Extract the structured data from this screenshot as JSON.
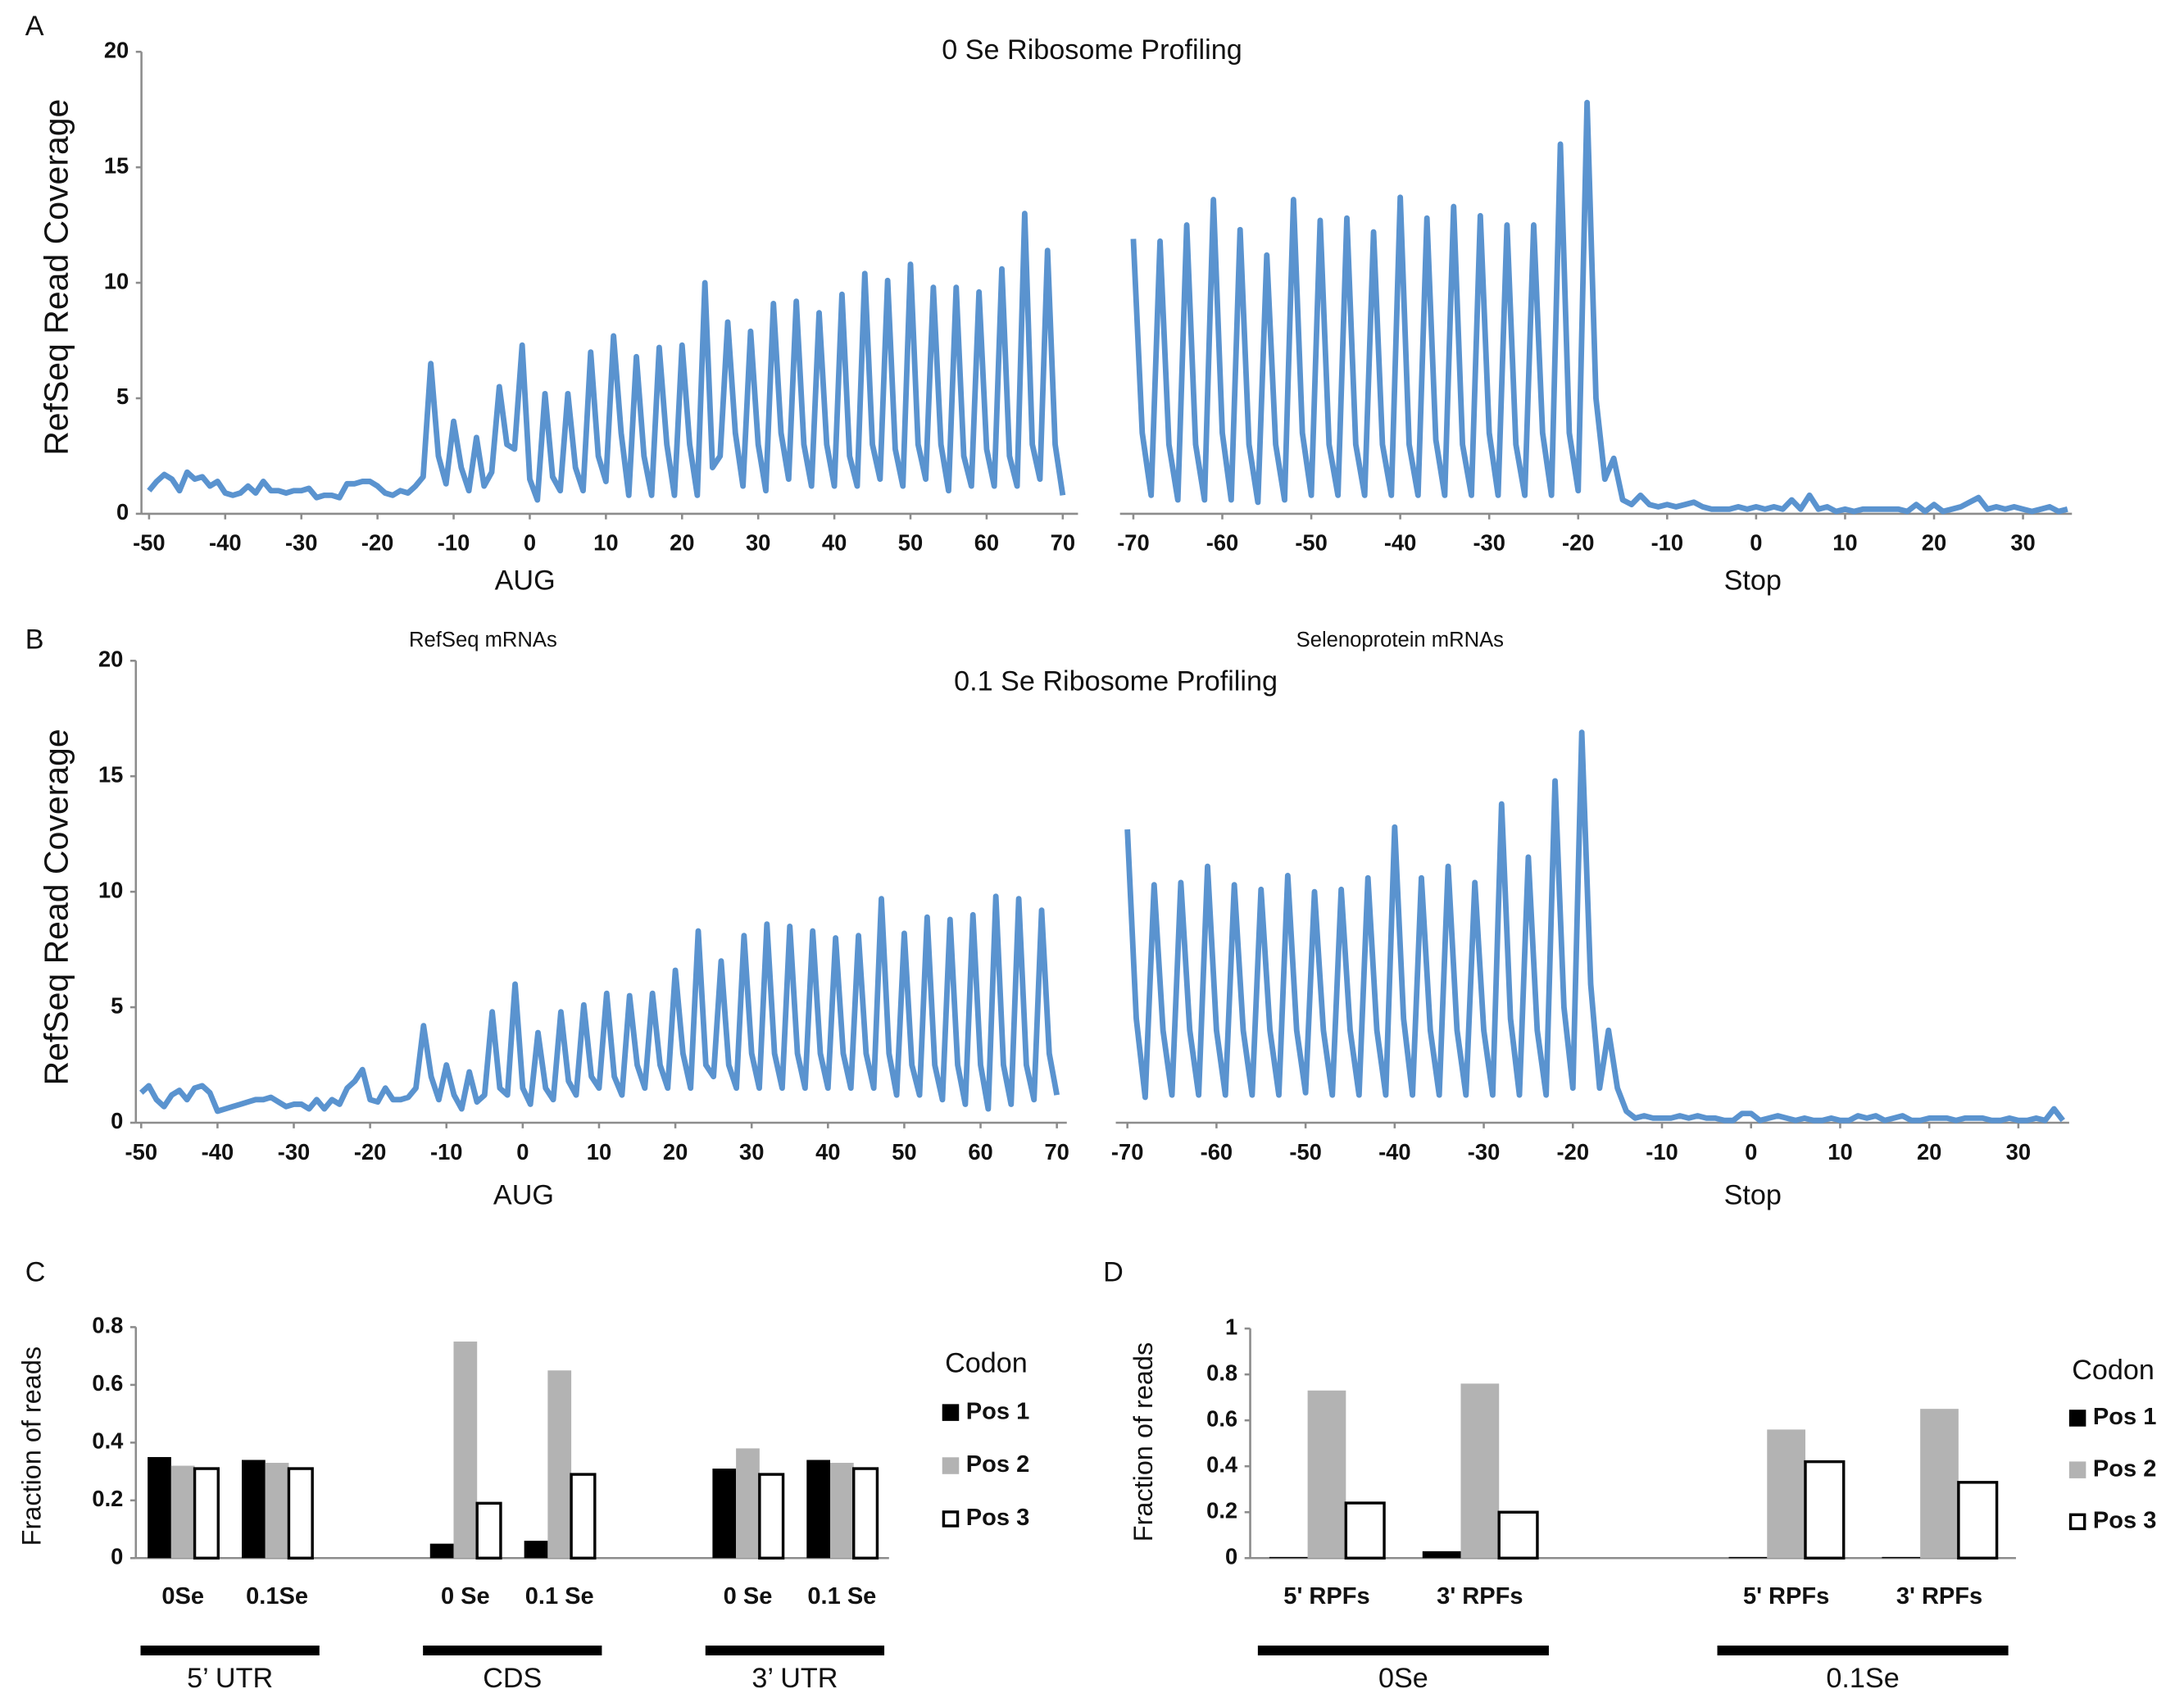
{
  "chart_data": [
    {
      "type": "line",
      "panel": "A",
      "title": "0 Se Ribosome Profiling",
      "ylabel": "RefSeq Read Coverage",
      "xlabel": "AUG",
      "color": "#5a93cf",
      "xlim": [
        -51,
        72
      ],
      "xticks": [
        -50,
        -40,
        -30,
        -20,
        -10,
        0,
        10,
        20,
        30,
        40,
        50,
        60,
        70
      ],
      "ylim": [
        0,
        20
      ],
      "yticks": [
        0,
        5,
        10,
        15,
        20
      ],
      "x": [
        -50,
        -49,
        -48,
        -47,
        -46,
        -45,
        -44,
        -43,
        -42,
        -41,
        -40,
        -39,
        -38,
        -37,
        -36,
        -35,
        -34,
        -33,
        -32,
        -31,
        -30,
        -29,
        -28,
        -27,
        -26,
        -25,
        -24,
        -23,
        -22,
        -21,
        -20,
        -19,
        -18,
        -17,
        -16,
        -15,
        -14,
        -13,
        -12,
        -11,
        -10,
        -9,
        -8,
        -7,
        -6,
        -5,
        -4,
        -3,
        -2,
        -1,
        0,
        1,
        2,
        3,
        4,
        5,
        6,
        7,
        8,
        9,
        10,
        11,
        12,
        13,
        14,
        15,
        16,
        17,
        18,
        19,
        20,
        21,
        22,
        23,
        24,
        25,
        26,
        27,
        28,
        29,
        30,
        31,
        32,
        33,
        34,
        35,
        36,
        37,
        38,
        39,
        40,
        41,
        42,
        43,
        44,
        45,
        46,
        47,
        48,
        49,
        50,
        51,
        52,
        53,
        54,
        55,
        56,
        57,
        58,
        59,
        60,
        61,
        62,
        63,
        64,
        65,
        66,
        67,
        68,
        69,
        70
      ],
      "values": [
        1.0,
        1.4,
        1.7,
        1.5,
        1.0,
        1.8,
        1.5,
        1.6,
        1.2,
        1.4,
        0.9,
        0.8,
        0.9,
        1.2,
        0.9,
        1.4,
        1.0,
        1.0,
        0.9,
        1.0,
        1.0,
        1.1,
        0.7,
        0.8,
        0.8,
        0.7,
        1.3,
        1.3,
        1.4,
        1.4,
        1.2,
        0.9,
        0.8,
        1.0,
        0.9,
        1.2,
        1.6,
        6.5,
        2.5,
        1.3,
        4.0,
        2.0,
        1.0,
        3.3,
        1.2,
        1.8,
        5.5,
        3.0,
        2.8,
        7.3,
        1.5,
        0.6,
        5.2,
        1.6,
        1.0,
        5.2,
        2.0,
        1.0,
        7.0,
        2.5,
        1.4,
        7.7,
        3.5,
        0.8,
        6.8,
        2.5,
        0.8,
        7.2,
        3.0,
        0.8,
        7.3,
        3.0,
        0.8,
        10.0,
        2.0,
        2.5,
        8.3,
        3.5,
        1.2,
        7.9,
        3.0,
        1.0,
        9.1,
        3.5,
        1.5,
        9.2,
        3.0,
        1.2,
        8.7,
        3.0,
        1.2,
        9.5,
        2.5,
        1.2,
        10.4,
        3.0,
        1.5,
        10.1,
        2.8,
        1.2,
        10.8,
        3.0,
        1.5,
        9.8,
        3.0,
        1.0,
        9.8,
        2.5,
        1.2,
        9.6,
        2.8,
        1.2,
        10.6,
        2.5,
        1.2,
        13.0,
        3.0,
        1.5,
        11.4,
        3.0,
        0.8
      ]
    },
    {
      "type": "line",
      "xlabel": "Stop",
      "color": "#5a93cf",
      "xlim": [
        -71.5,
        35.5
      ],
      "xticks": [
        -70,
        -60,
        -50,
        -40,
        -30,
        -20,
        -10,
        0,
        10,
        20,
        30
      ],
      "ylim": [
        0,
        20
      ],
      "x": [
        -70,
        -69,
        -68,
        -67,
        -66,
        -65,
        -64,
        -63,
        -62,
        -61,
        -60,
        -59,
        -58,
        -57,
        -56,
        -55,
        -54,
        -53,
        -52,
        -51,
        -50,
        -49,
        -48,
        -47,
        -46,
        -45,
        -44,
        -43,
        -42,
        -41,
        -40,
        -39,
        -38,
        -37,
        -36,
        -35,
        -34,
        -33,
        -32,
        -31,
        -30,
        -29,
        -28,
        -27,
        -26,
        -25,
        -24,
        -23,
        -22,
        -21,
        -20,
        -19,
        -18,
        -17,
        -16,
        -15,
        -14,
        -13,
        -12,
        -11,
        -10,
        -9,
        -8,
        -7,
        -6,
        -5,
        -4,
        -3,
        -2,
        -1,
        0,
        1,
        2,
        3,
        4,
        5,
        6,
        7,
        8,
        9,
        10,
        11,
        12,
        13,
        14,
        15,
        16,
        17,
        18,
        19,
        20,
        21,
        22,
        23,
        24,
        25,
        26,
        27,
        28,
        29,
        30,
        31,
        32,
        33,
        34,
        35
      ],
      "values": [
        11.9,
        3.5,
        0.8,
        11.8,
        3.0,
        0.6,
        12.5,
        3.0,
        0.6,
        13.6,
        3.5,
        0.6,
        12.3,
        3.0,
        0.5,
        11.2,
        3.0,
        0.6,
        13.6,
        3.5,
        0.8,
        12.7,
        3.0,
        0.8,
        12.8,
        3.0,
        0.8,
        12.2,
        3.0,
        0.8,
        13.7,
        3.0,
        0.8,
        12.8,
        3.2,
        0.8,
        13.3,
        3.0,
        0.8,
        12.9,
        3.5,
        0.8,
        12.5,
        3.0,
        0.8,
        12.5,
        3.5,
        0.8,
        16.0,
        3.5,
        1.0,
        17.8,
        5.0,
        1.5,
        2.4,
        0.6,
        0.4,
        0.8,
        0.4,
        0.3,
        0.4,
        0.3,
        0.4,
        0.5,
        0.3,
        0.2,
        0.2,
        0.2,
        0.3,
        0.2,
        0.3,
        0.2,
        0.3,
        0.2,
        0.6,
        0.2,
        0.8,
        0.2,
        0.3,
        0.1,
        0.2,
        0.1,
        0.2,
        0.2,
        0.2,
        0.2,
        0.2,
        0.1,
        0.4,
        0.1,
        0.4,
        0.1,
        0.2,
        0.3,
        0.5,
        0.7,
        0.2,
        0.3,
        0.2,
        0.3,
        0.2,
        0.1,
        0.2,
        0.3,
        0.1,
        0.2
      ]
    },
    {
      "type": "line",
      "panel": "B",
      "title": "0.1 Se Ribosome Profiling",
      "annotation": "RefSeq mRNAs",
      "ylabel": "RefSeq Read Coverage",
      "xlabel": "AUG",
      "color": "#5a93cf",
      "xlim": [
        -50.7,
        71.3
      ],
      "xticks": [
        -50,
        -40,
        -30,
        -20,
        -10,
        0,
        10,
        20,
        30,
        40,
        50,
        60,
        70
      ],
      "ylim": [
        0,
        20
      ],
      "yticks": [
        0,
        5,
        10,
        15,
        20
      ],
      "x": [
        -50,
        -49,
        -48,
        -47,
        -46,
        -45,
        -44,
        -43,
        -42,
        -41,
        -40,
        -39,
        -38,
        -37,
        -36,
        -35,
        -34,
        -33,
        -32,
        -31,
        -30,
        -29,
        -28,
        -27,
        -26,
        -25,
        -24,
        -23,
        -22,
        -21,
        -20,
        -19,
        -18,
        -17,
        -16,
        -15,
        -14,
        -13,
        -12,
        -11,
        -10,
        -9,
        -8,
        -7,
        -6,
        -5,
        -4,
        -3,
        -2,
        -1,
        0,
        1,
        2,
        3,
        4,
        5,
        6,
        7,
        8,
        9,
        10,
        11,
        12,
        13,
        14,
        15,
        16,
        17,
        18,
        19,
        20,
        21,
        22,
        23,
        24,
        25,
        26,
        27,
        28,
        29,
        30,
        31,
        32,
        33,
        34,
        35,
        36,
        37,
        38,
        39,
        40,
        41,
        42,
        43,
        44,
        45,
        46,
        47,
        48,
        49,
        50,
        51,
        52,
        53,
        54,
        55,
        56,
        57,
        58,
        59,
        60,
        61,
        62,
        63,
        64,
        65,
        66,
        67,
        68,
        69,
        70
      ],
      "values": [
        1.3,
        1.6,
        1.0,
        0.7,
        1.2,
        1.4,
        1.0,
        1.5,
        1.6,
        1.3,
        0.5,
        0.6,
        0.7,
        0.8,
        0.9,
        1.0,
        1.0,
        1.1,
        0.9,
        0.7,
        0.8,
        0.8,
        0.6,
        1.0,
        0.6,
        1.0,
        0.8,
        1.5,
        1.8,
        2.3,
        1.0,
        0.9,
        1.5,
        1.0,
        1.0,
        1.1,
        1.5,
        4.2,
        2.0,
        1.0,
        2.5,
        1.2,
        0.6,
        2.2,
        0.9,
        1.2,
        4.8,
        1.5,
        1.2,
        6.0,
        1.5,
        0.8,
        3.9,
        1.5,
        1.0,
        4.8,
        1.8,
        1.2,
        5.1,
        2.0,
        1.5,
        5.6,
        2.0,
        1.2,
        5.5,
        2.5,
        1.5,
        5.6,
        2.5,
        1.5,
        6.6,
        3.0,
        1.5,
        8.3,
        2.5,
        2.0,
        7.0,
        2.5,
        1.5,
        8.1,
        3.0,
        1.5,
        8.6,
        3.0,
        1.5,
        8.5,
        3.0,
        1.5,
        8.3,
        3.0,
        1.5,
        8.0,
        3.0,
        1.5,
        8.1,
        3.0,
        1.5,
        9.7,
        3.0,
        1.2,
        8.2,
        2.5,
        1.2,
        8.9,
        2.5,
        1.0,
        8.8,
        2.5,
        0.8,
        9.0,
        2.5,
        0.6,
        9.8,
        2.5,
        0.8,
        9.7,
        2.5,
        1.0,
        9.2,
        3.0,
        1.2
      ]
    },
    {
      "type": "line",
      "annotation": "Selenoprotein mRNAs",
      "xlabel": "Stop",
      "color": "#5a93cf",
      "xlim": [
        -71.3,
        35.7
      ],
      "xticks": [
        -70,
        -60,
        -50,
        -40,
        -30,
        -20,
        -10,
        0,
        10,
        20,
        30
      ],
      "ylim": [
        0,
        20
      ],
      "x": [
        -70,
        -69,
        -68,
        -67,
        -66,
        -65,
        -64,
        -63,
        -62,
        -61,
        -60,
        -59,
        -58,
        -57,
        -56,
        -55,
        -54,
        -53,
        -52,
        -51,
        -50,
        -49,
        -48,
        -47,
        -46,
        -45,
        -44,
        -43,
        -42,
        -41,
        -40,
        -39,
        -38,
        -37,
        -36,
        -35,
        -34,
        -33,
        -32,
        -31,
        -30,
        -29,
        -28,
        -27,
        -26,
        -25,
        -24,
        -23,
        -22,
        -21,
        -20,
        -19,
        -18,
        -17,
        -16,
        -15,
        -14,
        -13,
        -12,
        -11,
        -10,
        -9,
        -8,
        -7,
        -6,
        -5,
        -4,
        -3,
        -2,
        -1,
        0,
        1,
        2,
        3,
        4,
        5,
        6,
        7,
        8,
        9,
        10,
        11,
        12,
        13,
        14,
        15,
        16,
        17,
        18,
        19,
        20,
        21,
        22,
        23,
        24,
        25,
        26,
        27,
        28,
        29,
        30,
        31,
        32,
        33,
        34,
        35
      ],
      "values": [
        12.7,
        4.5,
        1.1,
        10.3,
        4.0,
        1.2,
        10.4,
        4.0,
        1.2,
        11.1,
        4.0,
        1.2,
        10.3,
        4.0,
        1.2,
        10.1,
        4.0,
        1.2,
        10.7,
        4.0,
        1.3,
        10.0,
        4.0,
        1.2,
        10.1,
        4.0,
        1.2,
        10.6,
        4.0,
        1.2,
        12.8,
        4.5,
        1.2,
        10.6,
        4.0,
        1.2,
        11.1,
        4.0,
        1.2,
        10.4,
        4.0,
        1.2,
        13.8,
        4.5,
        1.2,
        11.5,
        4.0,
        1.2,
        14.8,
        5.0,
        1.5,
        16.9,
        6.0,
        1.5,
        4.0,
        1.5,
        0.5,
        0.2,
        0.3,
        0.2,
        0.2,
        0.2,
        0.3,
        0.2,
        0.3,
        0.2,
        0.2,
        0.1,
        0.1,
        0.4,
        0.4,
        0.1,
        0.2,
        0.3,
        0.2,
        0.1,
        0.2,
        0.1,
        0.1,
        0.2,
        0.1,
        0.1,
        0.3,
        0.2,
        0.3,
        0.1,
        0.2,
        0.3,
        0.1,
        0.1,
        0.2,
        0.2,
        0.2,
        0.1,
        0.2,
        0.2,
        0.2,
        0.1,
        0.1,
        0.2,
        0.1,
        0.1,
        0.2,
        0.1,
        0.6,
        0.1
      ]
    },
    {
      "type": "bar",
      "panel": "C",
      "ylabel": "Fraction of reads",
      "legend_title": "Codon",
      "legend": "right",
      "categories": [
        "0Se",
        "0.1Se",
        "0 Se",
        "0.1 Se",
        "0 Se",
        "0.1 Se"
      ],
      "groups": [
        "5’ UTR",
        "CDS",
        "3’ UTR"
      ],
      "ylim": [
        0,
        0.8
      ],
      "yticks": [
        0,
        0.2,
        0.4,
        0.6,
        0.8
      ],
      "series": [
        {
          "name": "Pos 1",
          "color": "#000000",
          "values": [
            0.35,
            0.34,
            0.05,
            0.06,
            0.31,
            0.34
          ]
        },
        {
          "name": "Pos 2",
          "color": "#b3b3b3",
          "values": [
            0.32,
            0.33,
            0.75,
            0.65,
            0.38,
            0.33
          ]
        },
        {
          "name": "Pos 3",
          "color": "#ffffff",
          "edgecolor": "#000000",
          "values": [
            0.31,
            0.31,
            0.19,
            0.29,
            0.29,
            0.31
          ]
        }
      ]
    },
    {
      "type": "bar",
      "panel": "D",
      "ylabel": "Fraction of reads",
      "legend_title": "Codon",
      "legend": "right",
      "categories": [
        "5' RPFs",
        "3' RPFs",
        "5' RPFs",
        "3' RPFs"
      ],
      "groups": [
        "0Se",
        "0.1Se"
      ],
      "ylim": [
        0,
        1
      ],
      "yticks": [
        0,
        0.2,
        0.4,
        0.6,
        0.8,
        1
      ],
      "series": [
        {
          "name": "Pos 1",
          "color": "#000000",
          "values": [
            0.005,
            0.03,
            0.005,
            0.005
          ]
        },
        {
          "name": "Pos 2",
          "color": "#b3b3b3",
          "values": [
            0.73,
            0.76,
            0.56,
            0.65
          ]
        },
        {
          "name": "Pos 3",
          "color": "#ffffff",
          "edgecolor": "#000000",
          "values": [
            0.24,
            0.2,
            0.42,
            0.33
          ]
        }
      ]
    }
  ]
}
